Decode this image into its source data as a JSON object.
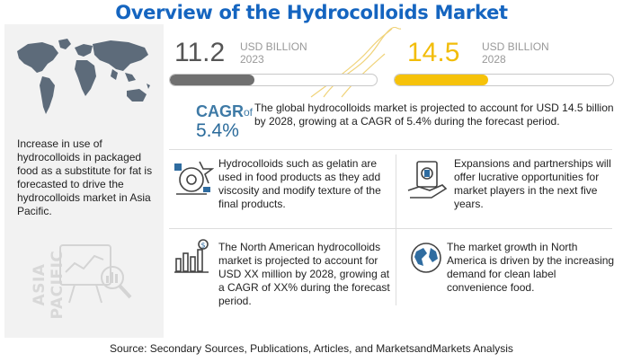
{
  "title": "Overview of the Hydrocolloids Market",
  "stat_2023": {
    "value": "11.2",
    "unit": "USD BILLION",
    "year": "2023",
    "bar_fill_fraction": 0.41,
    "bar_color": "#707070"
  },
  "stat_2028": {
    "value": "14.5",
    "unit": "USD BILLION",
    "year": "2028",
    "bar_fill_fraction": 0.43,
    "bar_color": "#f6c20a"
  },
  "cagr": {
    "label": "CAGR",
    "of": "of",
    "value": "5.4%",
    "text": "The global hydrocolloids market is projected to account for USD 14.5 billion by 2028, growing at a CAGR of 5.4% during the forecast period."
  },
  "region": {
    "label": "ASIA PACIFIC",
    "text": "Increase in use of hydrocolloids in packaged food as a substitute for fat is forecasted to drive the hydrocolloids market in Asia Pacific."
  },
  "cards": [
    {
      "icon": "food-gear-icon",
      "text": "Hydrocolloids such as gelatin are used in food products as they add viscosity and modify texture of the final products."
    },
    {
      "icon": "hand-money-icon",
      "text": "Expansions and partnerships will offer lucrative opportunities for market players in the next five years."
    },
    {
      "icon": "bar-chart-dollar-icon",
      "text": "The North American hydrocolloids market is projected to account for USD XX million by 2028, growing at a CAGR of XX% during the forecast period."
    },
    {
      "icon": "globe-icon",
      "text": "The market growth in North America is driven by the increasing demand for clean label convenience food."
    }
  ],
  "source": "Source: Secondary Sources, Publications, Articles, and MarketsandMarkets Analysis",
  "colors": {
    "title": "#1565c0",
    "accent_blue": "#3e7aa6",
    "accent_yellow": "#f6c20a",
    "panel_bg": "#f2f2f2"
  }
}
